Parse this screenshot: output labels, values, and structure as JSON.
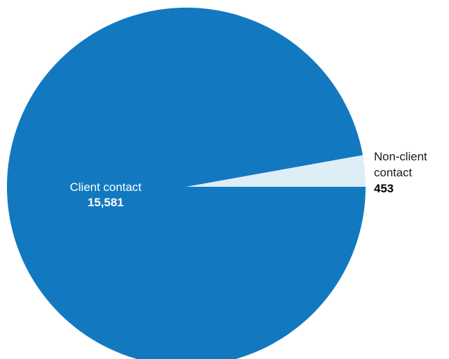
{
  "chart_data": {
    "type": "pie",
    "slices": [
      {
        "label_lines": [
          "Client contact"
        ],
        "value": 15581,
        "value_label": "15,581",
        "color": "#1279c0",
        "label_position": "inside"
      },
      {
        "label_lines": [
          "Non-client",
          "contact"
        ],
        "value": 453,
        "value_label": "453",
        "color": "#deeef7",
        "label_position": "outside-right"
      }
    ],
    "legend": "none",
    "start": "3 o'clock",
    "direction": "clockwise"
  }
}
